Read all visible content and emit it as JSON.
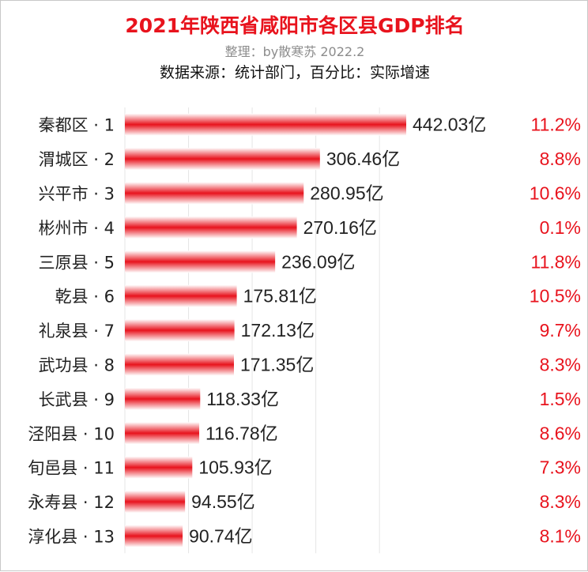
{
  "chart_data": {
    "type": "bar",
    "orientation": "horizontal",
    "title": "2021年陕西省咸阳市各区县GDP排名",
    "subtitle": "整理：by散寒苏  2022.2",
    "source_note": "数据来源：统计部门，百分比：实际增速",
    "value_unit": "亿",
    "bar_color": "#e8131d",
    "growth_color": "#e8131d",
    "categories": [
      "秦都区 · 1",
      "渭城区 · 2",
      "兴平市 · 3",
      "彬州市 · 4",
      "三原县 · 5",
      "乾县 · 6",
      "礼泉县 · 7",
      "武功县 · 8",
      "长武县 · 9",
      "泾阳县 · 10",
      "旬邑县 · 11",
      "永寿县 · 12",
      "淳化县 · 13"
    ],
    "values": [
      442.03,
      306.46,
      280.95,
      270.16,
      236.09,
      175.81,
      172.13,
      171.35,
      118.33,
      116.78,
      105.93,
      94.55,
      90.74
    ],
    "value_labels": [
      "442.03亿",
      "306.46亿",
      "280.95亿",
      "270.16亿",
      "236.09亿",
      "175.81亿",
      "172.13亿",
      "171.35亿",
      "118.33亿",
      "116.78亿",
      "105.93亿",
      "94.55亿",
      "90.74亿"
    ],
    "growth_labels": [
      "11.2%",
      "8.8%",
      "10.6%",
      "0.1%",
      "11.8%",
      "10.5%",
      "9.7%",
      "8.3%",
      "1.5%",
      "8.6%",
      "7.3%",
      "8.3%",
      "8.1%"
    ],
    "xlim": [
      0,
      450
    ]
  }
}
